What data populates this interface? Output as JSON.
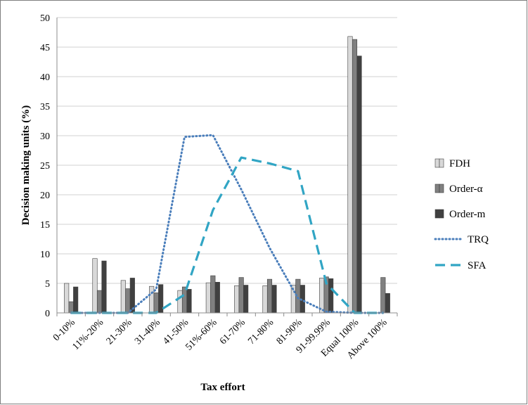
{
  "chart_data": {
    "type": "bar",
    "title": "",
    "xlabel": "Tax effort",
    "ylabel": "Decision making units (%)",
    "ylim": [
      0,
      50
    ],
    "yticks": [
      "0",
      "5",
      "10",
      "15",
      "20",
      "25",
      "30",
      "35",
      "40",
      "45",
      "50"
    ],
    "grid": "horizontal",
    "legend": "right",
    "categories": [
      "0-10%",
      "11%-20%",
      "21-30%",
      "31-40%",
      "41-50%",
      "51%-60%",
      "61-70%",
      "71-80%",
      "81-90%",
      "91-99.99%",
      "Equal 100%",
      "Above 100%"
    ],
    "series": [
      {
        "name": "FDH",
        "kind": "bar",
        "color": "#d9d9d9",
        "values": [
          5.0,
          9.2,
          5.5,
          4.5,
          3.8,
          5.1,
          4.6,
          4.6,
          4.7,
          5.9,
          46.8,
          0
        ]
      },
      {
        "name": "Order-α",
        "kind": "bar",
        "color": "#808080",
        "values": [
          1.9,
          3.8,
          4.1,
          3.4,
          4.4,
          6.3,
          6.0,
          5.7,
          5.7,
          6.1,
          46.3,
          6.0
        ]
      },
      {
        "name": "Order-m",
        "kind": "bar",
        "color": "#404040",
        "values": [
          4.4,
          8.8,
          5.9,
          4.8,
          4.0,
          5.2,
          4.7,
          4.7,
          4.7,
          5.8,
          43.5,
          3.3
        ]
      },
      {
        "name": "TRQ",
        "kind": "line",
        "style": "dotted",
        "color": "#4a7ebb",
        "values": [
          0,
          0,
          0,
          4.0,
          29.8,
          30.1,
          20.9,
          11.0,
          2.5,
          0.2,
          0,
          0
        ]
      },
      {
        "name": "SFA",
        "kind": "line",
        "style": "dashed",
        "color": "#31a5c4",
        "values": [
          0,
          0,
          0,
          0,
          3.1,
          17.4,
          26.3,
          25.3,
          24.0,
          5.0,
          0,
          0
        ]
      }
    ]
  }
}
